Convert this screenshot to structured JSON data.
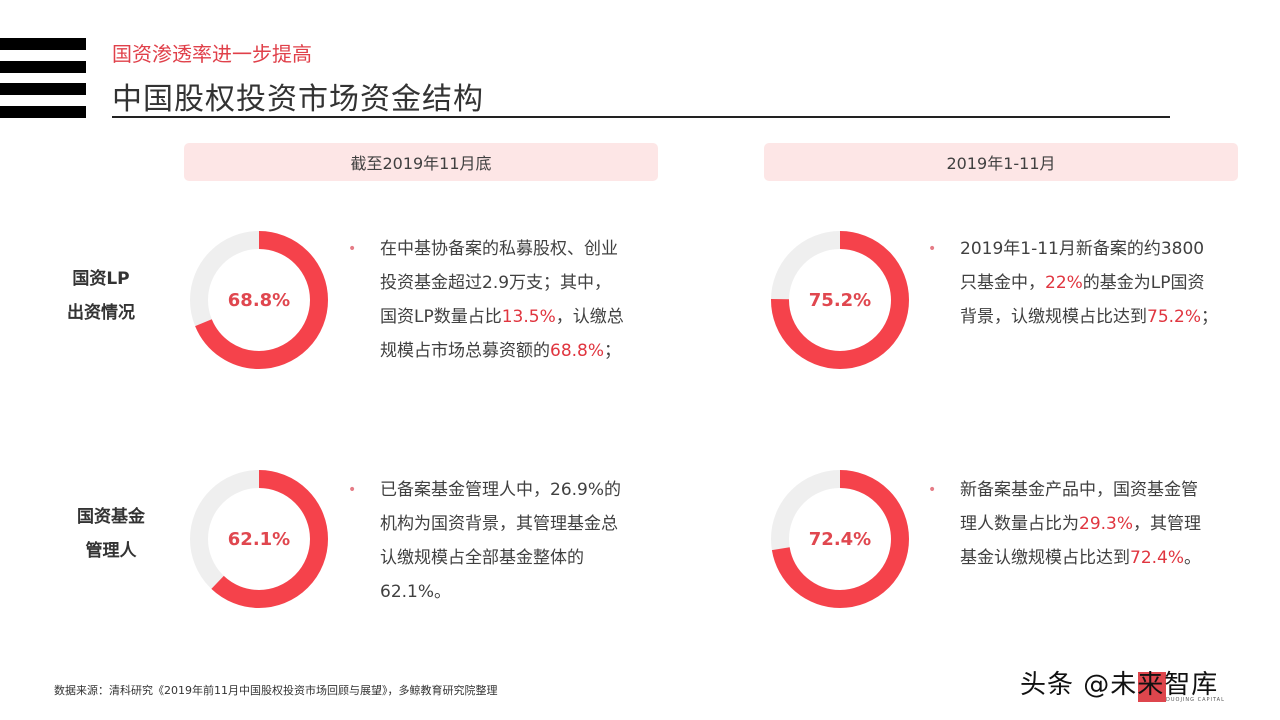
{
  "header": {
    "subtitle": "国资渗透率进一步提高",
    "title": "中国股权投资市场资金结构",
    "menu_icon": "hamburger-bars-icon"
  },
  "periods": [
    {
      "label": "截至2019年11月底"
    },
    {
      "label": "2019年1-11月"
    }
  ],
  "rows": [
    {
      "label_line1": "国资LP",
      "label_line2": "出资情况"
    },
    {
      "label_line1": "国资基金",
      "label_line2": "管理人"
    }
  ],
  "colors": {
    "accent": "#f5424b",
    "track": "#efefef",
    "highlight_text": "#e0353f",
    "period_bg": "#fde6e6"
  },
  "cells": [
    {
      "value_label": "68.8%",
      "bullet": "•",
      "lines": [
        [
          {
            "t": "在中基协备案的私募股权、创业"
          }
        ],
        [
          {
            "t": "投资基金超过2.9万支；其中，"
          }
        ],
        [
          {
            "t": "国资LP数量占比"
          },
          {
            "t": "13.5%",
            "hl": true
          },
          {
            "t": "，认缴总"
          }
        ],
        [
          {
            "t": "规模占市场总募资额的"
          },
          {
            "t": "68.8%",
            "hl": true
          },
          {
            "t": "；"
          }
        ]
      ]
    },
    {
      "value_label": "75.2%",
      "bullet": "•",
      "lines": [
        [
          {
            "t": "2019年1-11月新备案的约3800"
          }
        ],
        [
          {
            "t": "只基金中，"
          },
          {
            "t": "22%",
            "hl": true
          },
          {
            "t": "的基金为LP国资"
          }
        ],
        [
          {
            "t": "背景，认缴规模占比达到"
          },
          {
            "t": "75.2%",
            "hl": true
          },
          {
            "t": "；"
          }
        ]
      ]
    },
    {
      "value_label": "62.1%",
      "bullet": "•",
      "lines": [
        [
          {
            "t": "已备案基金管理人中，26.9%的"
          }
        ],
        [
          {
            "t": "机构为国资背景，其管理基金总"
          }
        ],
        [
          {
            "t": "认缴规模占全部基金整体的"
          }
        ],
        [
          {
            "t": "62.1%。"
          }
        ]
      ]
    },
    {
      "value_label": "72.4%",
      "bullet": "•",
      "lines": [
        [
          {
            "t": "新备案基金产品中，国资基金管"
          }
        ],
        [
          {
            "t": "理人数量占比为"
          },
          {
            "t": "29.3%",
            "hl": true
          },
          {
            "t": "，其管理"
          }
        ],
        [
          {
            "t": "基金认缴规模占比达到"
          },
          {
            "t": "72.4%",
            "hl": true
          },
          {
            "t": "。"
          }
        ]
      ]
    }
  ],
  "footer": {
    "source": "数据来源：清科研究《2019年前11月中国股权投资市场回顾与展望》，多鲸教育研究院整理",
    "watermark": "头条 @未来智库",
    "watermark_caption": "DUOJING CAPITAL"
  },
  "chart_data": [
    {
      "type": "pie",
      "subtype": "donut",
      "title": "国资LP出资情况 · 截至2019年11月底",
      "categories": [
        "国资LP认缴规模占比",
        "其他"
      ],
      "values": [
        68.8,
        31.2
      ],
      "center_label": "68.8%"
    },
    {
      "type": "pie",
      "subtype": "donut",
      "title": "国资LP出资情况 · 2019年1-11月",
      "categories": [
        "国资LP认缴规模占比",
        "其他"
      ],
      "values": [
        75.2,
        24.8
      ],
      "center_label": "75.2%"
    },
    {
      "type": "pie",
      "subtype": "donut",
      "title": "国资基金管理人 · 截至2019年11月底",
      "categories": [
        "国资背景管理人认缴规模占比",
        "其他"
      ],
      "values": [
        62.1,
        37.9
      ],
      "center_label": "62.1%"
    },
    {
      "type": "pie",
      "subtype": "donut",
      "title": "国资基金管理人 · 2019年1-11月",
      "categories": [
        "国资基金管理人认缴规模占比",
        "其他"
      ],
      "values": [
        72.4,
        27.6
      ],
      "center_label": "72.4%"
    }
  ]
}
